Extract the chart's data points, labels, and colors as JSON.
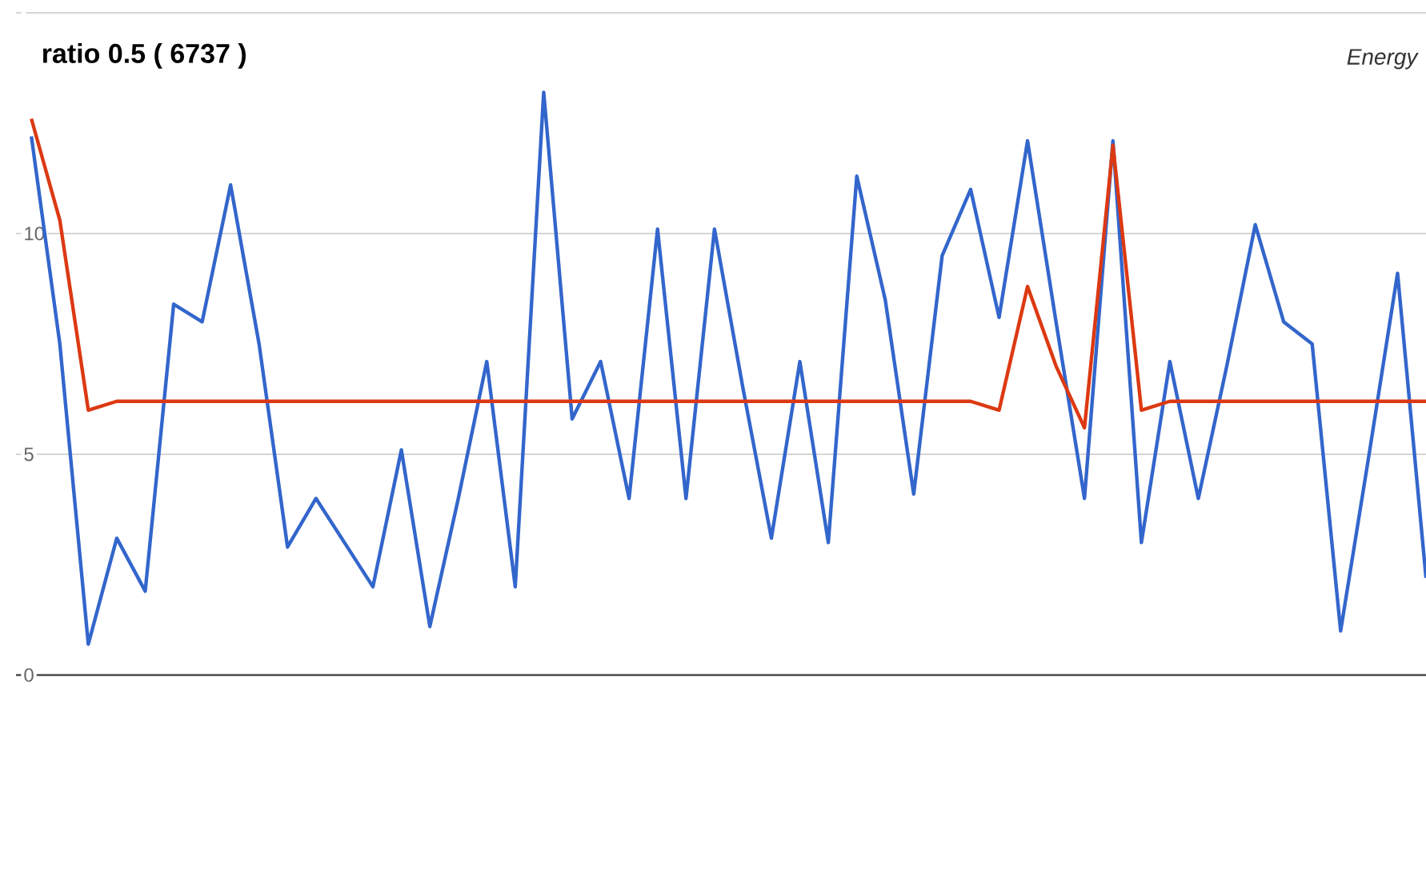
{
  "chart_data": {
    "type": "line",
    "title": "ratio 0.5 ( 6737 )",
    "annotations": [
      "Energy"
    ],
    "categories": [
      null,
      null,
      null,
      null,
      null,
      null,
      null,
      null,
      null,
      null,
      null,
      null,
      null,
      null,
      null,
      null,
      null,
      null,
      null,
      null,
      null,
      null,
      null,
      null,
      null,
      null,
      null,
      null,
      null,
      null,
      null,
      null,
      null,
      null,
      null,
      null,
      null,
      null,
      null,
      null,
      null,
      null,
      null,
      null,
      null,
      null,
      null,
      null,
      null,
      null
    ],
    "ylim": [
      0,
      15
    ],
    "yticks": [
      0,
      5,
      10,
      {
        "value": 15,
        "label": null
      }
    ],
    "tick_labels": "y",
    "grid": "y",
    "marker": "none",
    "line_style": "solid",
    "series": [
      {
        "color": "#3366cc",
        "values": [
          12.2,
          7.5,
          0.7,
          3.1,
          1.9,
          8.4,
          8.0,
          11.1,
          7.5,
          2.9,
          4.0,
          3.0,
          2.0,
          5.1,
          1.1,
          4.0,
          7.1,
          2.0,
          13.2,
          5.8,
          7.1,
          4.0,
          10.1,
          4.0,
          10.1,
          6.5,
          3.1,
          7.1,
          3.0,
          11.3,
          8.5,
          4.1,
          9.5,
          11.0,
          8.1,
          12.1,
          8.0,
          4.0,
          12.1,
          3.0,
          7.1,
          4.0,
          7.0,
          10.2,
          8.0,
          7.5,
          1.0,
          5.0,
          9.1,
          2.2
        ]
      },
      {
        "color": "#dc3912",
        "values": [
          12.6,
          10.3,
          6.0,
          6.2,
          6.2,
          6.2,
          6.2,
          6.2,
          6.2,
          6.2,
          6.2,
          6.2,
          6.2,
          6.2,
          6.2,
          6.2,
          6.2,
          6.2,
          6.2,
          6.2,
          6.2,
          6.2,
          6.2,
          6.2,
          6.2,
          6.2,
          6.2,
          6.2,
          6.2,
          6.2,
          6.2,
          6.2,
          6.2,
          6.2,
          6.0,
          8.8,
          7.0,
          5.6,
          12.0,
          6.0,
          6.2,
          6.2,
          6.2,
          6.2,
          6.2,
          6.2,
          6.2,
          6.2,
          6.2,
          6.2
        ]
      }
    ]
  }
}
